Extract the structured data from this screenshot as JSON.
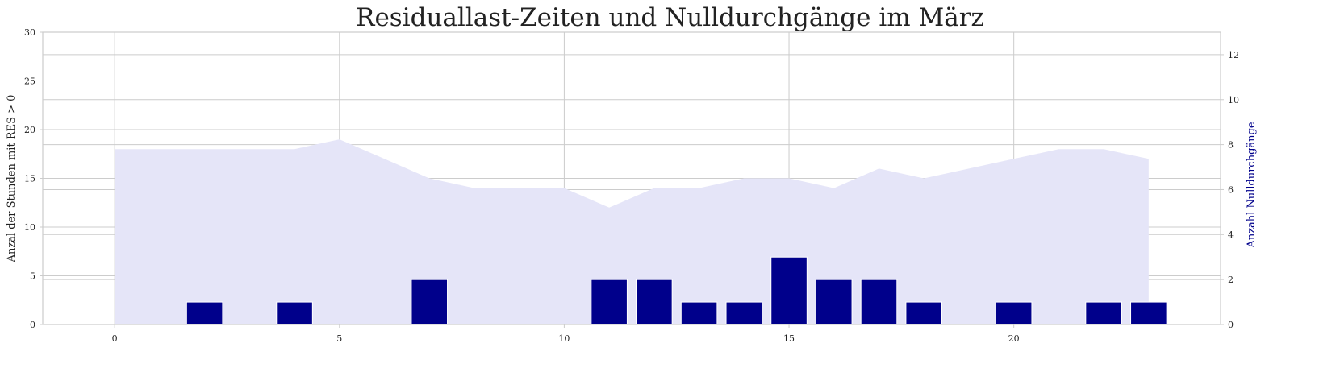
{
  "chart_data": {
    "type": "bar",
    "title": "Residuallast-Zeiten und Nulldurchgänge im März",
    "xlabel": "",
    "ylabel": "Anzal der Stunden mit RES > 0",
    "y2label": "Anzahl Nulldurchgänge",
    "xlim": [
      -1.6,
      24.6
    ],
    "xticks": [
      0,
      5,
      10,
      15,
      20
    ],
    "ylim": [
      0,
      30
    ],
    "yticks": [
      0,
      5,
      10,
      15,
      20,
      25,
      30
    ],
    "y2lim": [
      0,
      13
    ],
    "y2ticks": [
      0,
      2,
      4,
      6,
      8,
      10,
      12
    ],
    "grid": true,
    "area_series": {
      "axis": "left",
      "color": "#e5e5f8",
      "x": [
        0,
        1,
        2,
        3,
        4,
        5,
        6,
        7,
        8,
        9,
        10,
        11,
        12,
        13,
        14,
        15,
        16,
        17,
        18,
        19,
        20,
        21,
        22,
        23
      ],
      "values": [
        18,
        18,
        18,
        18,
        18,
        19,
        17,
        15,
        14,
        14,
        14,
        12,
        14,
        14,
        15,
        15,
        14,
        16,
        15,
        16,
        17,
        18,
        18,
        17
      ]
    },
    "bar_series": {
      "axis": "right",
      "color": "#00008b",
      "x": [
        0,
        1,
        2,
        3,
        4,
        5,
        6,
        7,
        8,
        9,
        10,
        11,
        12,
        13,
        14,
        15,
        16,
        17,
        18,
        19,
        20,
        21,
        22,
        23
      ],
      "values": [
        0,
        0,
        1,
        0,
        1,
        0,
        0,
        2,
        0,
        0,
        0,
        2,
        2,
        1,
        1,
        3,
        2,
        2,
        1,
        0,
        1,
        0,
        1,
        1
      ]
    },
    "colors": {
      "grid": "#cccccc",
      "axis_text": "#222222",
      "y2label": "#00008b"
    }
  }
}
